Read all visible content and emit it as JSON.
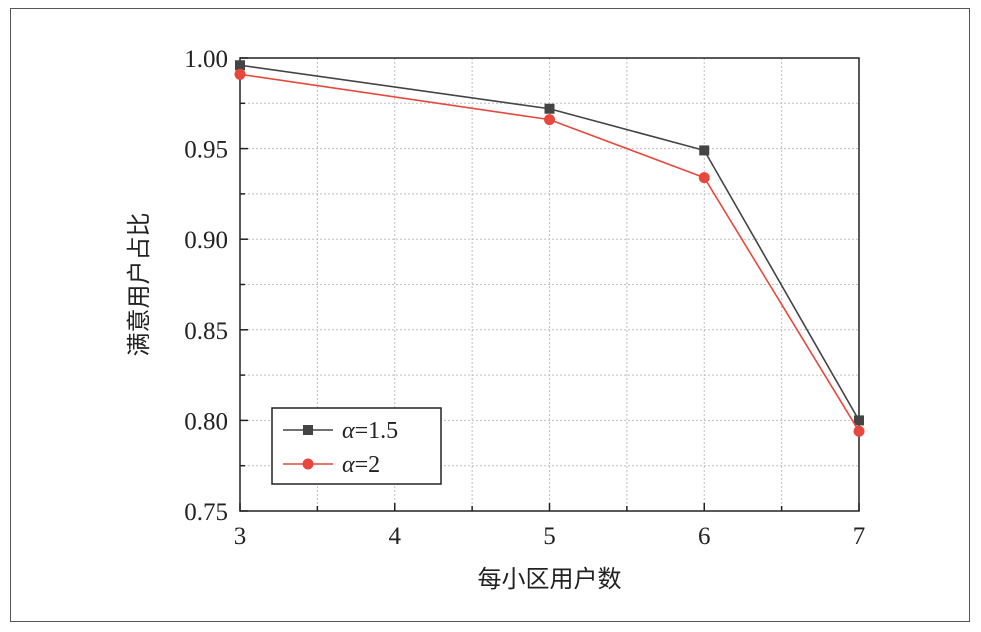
{
  "chart_data": {
    "type": "line",
    "xlabel": "每小区用户数",
    "ylabel": "满意用户占比",
    "xlim": [
      3,
      7
    ],
    "ylim": [
      0.75,
      1.0
    ],
    "x_ticks": [
      "3",
      "4",
      "5",
      "6",
      "7"
    ],
    "y_ticks": [
      "0.75",
      "0.80",
      "0.85",
      "0.90",
      "0.95",
      "1.00"
    ],
    "grid": true,
    "legend_position": "bottom-left",
    "series": [
      {
        "name": "α=1.5",
        "name_symbol": "α",
        "name_rest": "=1.5",
        "marker": "square",
        "color": "#444444",
        "x": [
          3,
          5,
          6,
          7
        ],
        "values": [
          0.996,
          0.972,
          0.949,
          0.8
        ]
      },
      {
        "name": "α=2",
        "name_symbol": "α",
        "name_rest": "=2",
        "marker": "circle",
        "color": "#e8473b",
        "x": [
          3,
          5,
          6,
          7
        ],
        "values": [
          0.991,
          0.966,
          0.934,
          0.794
        ]
      }
    ]
  }
}
